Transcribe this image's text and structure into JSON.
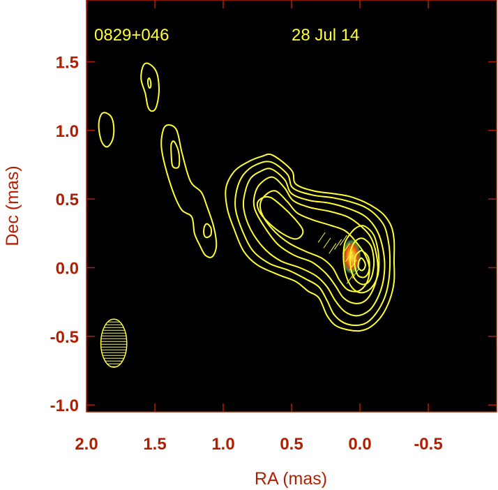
{
  "colors": {
    "axis": "#b41e00",
    "background": "#000000",
    "contour": "#ffff33",
    "page": "#ffffff"
  },
  "plot": {
    "source_label": "0829+046",
    "date_label": "28 Jul 14"
  },
  "chart_data": {
    "type": "contour",
    "xlabel": "RA (mas)",
    "ylabel": "Dec (mas)",
    "xlim": [
      2.0,
      -1.0
    ],
    "ylim": [
      -1.05,
      1.95
    ],
    "x_inverted": true,
    "x_ticks": [
      2.0,
      1.5,
      1.0,
      0.5,
      0.0,
      -0.5
    ],
    "x_tick_labels": [
      "2.0",
      "1.5",
      "1.0",
      "0.5",
      "0.0",
      "-0.5"
    ],
    "y_ticks": [
      1.5,
      1.0,
      0.5,
      0.0,
      -0.5,
      -1.0
    ],
    "y_tick_labels": [
      "1.5",
      "1.0",
      "0.5",
      "0.0",
      "-0.5",
      "-1.0"
    ],
    "annotations": [
      "0829+046",
      "28 Jul 14"
    ],
    "core_position": {
      "ra": 0.0,
      "dec": 0.04
    },
    "beam": {
      "ra": 1.8,
      "dec": -0.55,
      "major_axis": 0.35,
      "minor_axis": 0.19,
      "position_angle_deg": 0
    },
    "contours": [
      {
        "name": "knot-1.8",
        "points": [
          [
            1.87,
            1.13
          ],
          [
            1.82,
            1.1
          ],
          [
            1.8,
            1.02
          ],
          [
            1.81,
            0.93
          ],
          [
            1.85,
            0.88
          ],
          [
            1.89,
            0.92
          ],
          [
            1.91,
            1.02
          ],
          [
            1.9,
            1.1
          ]
        ]
      },
      {
        "name": "knot-1.5-outer",
        "points": [
          [
            1.56,
            1.49
          ],
          [
            1.51,
            1.46
          ],
          [
            1.48,
            1.4
          ],
          [
            1.47,
            1.28
          ],
          [
            1.49,
            1.17
          ],
          [
            1.52,
            1.14
          ],
          [
            1.55,
            1.17
          ],
          [
            1.57,
            1.27
          ],
          [
            1.6,
            1.37
          ],
          [
            1.59,
            1.46
          ]
        ]
      },
      {
        "name": "knot-1.5-inner",
        "points": [
          [
            1.54,
            1.38
          ],
          [
            1.53,
            1.35
          ],
          [
            1.53,
            1.32
          ],
          [
            1.54,
            1.31
          ],
          [
            1.55,
            1.34
          ],
          [
            1.55,
            1.37
          ]
        ]
      },
      {
        "name": "jet-arm-outer",
        "points": [
          [
            1.4,
            1.04
          ],
          [
            1.34,
            1.0
          ],
          [
            1.3,
            0.83
          ],
          [
            1.24,
            0.63
          ],
          [
            1.16,
            0.55
          ],
          [
            1.12,
            0.45
          ],
          [
            1.07,
            0.3
          ],
          [
            1.05,
            0.16
          ],
          [
            1.08,
            0.08
          ],
          [
            1.13,
            0.09
          ],
          [
            1.17,
            0.16
          ],
          [
            1.21,
            0.25
          ],
          [
            1.23,
            0.37
          ],
          [
            1.31,
            0.43
          ],
          [
            1.39,
            0.62
          ],
          [
            1.45,
            0.86
          ],
          [
            1.44,
            1.0
          ]
        ]
      },
      {
        "name": "jet-arm-knot-1.3",
        "points": [
          [
            1.36,
            0.92
          ],
          [
            1.33,
            0.86
          ],
          [
            1.32,
            0.78
          ],
          [
            1.33,
            0.73
          ],
          [
            1.37,
            0.74
          ],
          [
            1.38,
            0.83
          ],
          [
            1.38,
            0.9
          ]
        ]
      },
      {
        "name": "jet-arm-knot-1.1",
        "points": [
          [
            1.12,
            0.32
          ],
          [
            1.09,
            0.29
          ],
          [
            1.09,
            0.24
          ],
          [
            1.12,
            0.22
          ],
          [
            1.14,
            0.24
          ],
          [
            1.14,
            0.29
          ]
        ]
      },
      {
        "name": "main-contour-1",
        "points": [
          [
            0.64,
            0.82
          ],
          [
            0.5,
            0.71
          ],
          [
            0.47,
            0.61
          ],
          [
            0.34,
            0.56
          ],
          [
            0.2,
            0.54
          ],
          [
            0.08,
            0.52
          ],
          [
            -0.03,
            0.48
          ],
          [
            -0.12,
            0.43
          ],
          [
            -0.18,
            0.38
          ],
          [
            -0.23,
            0.3
          ],
          [
            -0.25,
            0.2
          ],
          [
            -0.25,
            0.05
          ],
          [
            -0.25,
            -0.1
          ],
          [
            -0.22,
            -0.23
          ],
          [
            -0.16,
            -0.35
          ],
          [
            -0.08,
            -0.43
          ],
          [
            0.0,
            -0.46
          ],
          [
            0.1,
            -0.45
          ],
          [
            0.18,
            -0.42
          ],
          [
            0.24,
            -0.35
          ],
          [
            0.3,
            -0.22
          ],
          [
            0.38,
            -0.17
          ],
          [
            0.47,
            -0.1
          ],
          [
            0.6,
            -0.05
          ],
          [
            0.75,
            0.02
          ],
          [
            0.85,
            0.12
          ],
          [
            0.92,
            0.28
          ],
          [
            0.97,
            0.43
          ],
          [
            0.98,
            0.58
          ],
          [
            0.92,
            0.7
          ],
          [
            0.82,
            0.77
          ],
          [
            0.72,
            0.81
          ]
        ]
      },
      {
        "name": "main-contour-2",
        "points": [
          [
            0.65,
            0.77
          ],
          [
            0.53,
            0.68
          ],
          [
            0.49,
            0.58
          ],
          [
            0.35,
            0.53
          ],
          [
            0.2,
            0.51
          ],
          [
            0.07,
            0.48
          ],
          [
            -0.04,
            0.44
          ],
          [
            -0.12,
            0.38
          ],
          [
            -0.18,
            0.3
          ],
          [
            -0.21,
            0.18
          ],
          [
            -0.22,
            0.05
          ],
          [
            -0.21,
            -0.1
          ],
          [
            -0.18,
            -0.22
          ],
          [
            -0.12,
            -0.33
          ],
          [
            -0.05,
            -0.4
          ],
          [
            0.03,
            -0.42
          ],
          [
            0.12,
            -0.4
          ],
          [
            0.19,
            -0.34
          ],
          [
            0.24,
            -0.24
          ],
          [
            0.3,
            -0.14
          ],
          [
            0.4,
            -0.08
          ],
          [
            0.52,
            -0.02
          ],
          [
            0.66,
            0.03
          ],
          [
            0.78,
            0.12
          ],
          [
            0.86,
            0.27
          ],
          [
            0.91,
            0.43
          ],
          [
            0.9,
            0.57
          ],
          [
            0.85,
            0.68
          ],
          [
            0.76,
            0.75
          ]
        ]
      },
      {
        "name": "main-contour-3",
        "points": [
          [
            0.65,
            0.72
          ],
          [
            0.55,
            0.64
          ],
          [
            0.5,
            0.54
          ],
          [
            0.37,
            0.49
          ],
          [
            0.22,
            0.47
          ],
          [
            0.08,
            0.43
          ],
          [
            -0.03,
            0.38
          ],
          [
            -0.1,
            0.31
          ],
          [
            -0.15,
            0.21
          ],
          [
            -0.18,
            0.05
          ],
          [
            -0.17,
            -0.1
          ],
          [
            -0.13,
            -0.22
          ],
          [
            -0.07,
            -0.31
          ],
          [
            0.02,
            -0.35
          ],
          [
            0.11,
            -0.32
          ],
          [
            0.18,
            -0.24
          ],
          [
            0.24,
            -0.14
          ],
          [
            0.32,
            -0.06
          ],
          [
            0.44,
            0.0
          ],
          [
            0.58,
            0.05
          ],
          [
            0.7,
            0.14
          ],
          [
            0.8,
            0.28
          ],
          [
            0.85,
            0.43
          ],
          [
            0.84,
            0.55
          ],
          [
            0.8,
            0.65
          ],
          [
            0.73,
            0.7
          ]
        ]
      },
      {
        "name": "main-contour-4",
        "points": [
          [
            0.64,
            0.66
          ],
          [
            0.55,
            0.58
          ],
          [
            0.49,
            0.49
          ],
          [
            0.37,
            0.44
          ],
          [
            0.22,
            0.41
          ],
          [
            0.09,
            0.37
          ],
          [
            -0.01,
            0.3
          ],
          [
            -0.08,
            0.22
          ],
          [
            -0.12,
            0.1
          ],
          [
            -0.13,
            -0.03
          ],
          [
            -0.1,
            -0.15
          ],
          [
            -0.04,
            -0.24
          ],
          [
            0.04,
            -0.26
          ],
          [
            0.12,
            -0.22
          ],
          [
            0.18,
            -0.13
          ],
          [
            0.25,
            -0.04
          ],
          [
            0.35,
            0.04
          ],
          [
            0.48,
            0.09
          ],
          [
            0.6,
            0.17
          ],
          [
            0.7,
            0.3
          ],
          [
            0.77,
            0.43
          ],
          [
            0.77,
            0.53
          ],
          [
            0.73,
            0.61
          ]
        ]
      },
      {
        "name": "main-contour-5",
        "points": [
          [
            0.62,
            0.56
          ],
          [
            0.53,
            0.48
          ],
          [
            0.46,
            0.4
          ],
          [
            0.35,
            0.35
          ],
          [
            0.22,
            0.31
          ],
          [
            0.11,
            0.27
          ],
          [
            0.03,
            0.19
          ],
          [
            -0.04,
            0.09
          ],
          [
            -0.07,
            -0.01
          ],
          [
            -0.05,
            -0.11
          ],
          [
            0.01,
            -0.17
          ],
          [
            0.09,
            -0.16
          ],
          [
            0.15,
            -0.09
          ],
          [
            0.2,
            0.0
          ],
          [
            0.28,
            0.07
          ],
          [
            0.4,
            0.12
          ],
          [
            0.52,
            0.18
          ],
          [
            0.62,
            0.26
          ],
          [
            0.7,
            0.36
          ],
          [
            0.73,
            0.45
          ],
          [
            0.7,
            0.52
          ]
        ]
      },
      {
        "name": "jet-knot-0.7",
        "points": [
          [
            0.65,
            0.51
          ],
          [
            0.56,
            0.44
          ],
          [
            0.48,
            0.36
          ],
          [
            0.42,
            0.28
          ],
          [
            0.43,
            0.23
          ],
          [
            0.48,
            0.21
          ],
          [
            0.57,
            0.25
          ],
          [
            0.66,
            0.32
          ],
          [
            0.73,
            0.4
          ],
          [
            0.75,
            0.47
          ],
          [
            0.71,
            0.51
          ]
        ]
      },
      {
        "name": "core-contour-6",
        "points": [
          [
            -0.04,
            0.3
          ],
          [
            -0.1,
            0.24
          ],
          [
            -0.13,
            0.14
          ],
          [
            -0.14,
            0.04
          ],
          [
            -0.13,
            -0.06
          ],
          [
            -0.09,
            -0.14
          ],
          [
            -0.03,
            -0.18
          ],
          [
            0.03,
            -0.17
          ],
          [
            0.08,
            -0.11
          ],
          [
            0.11,
            -0.02
          ],
          [
            0.12,
            0.08
          ],
          [
            0.11,
            0.18
          ],
          [
            0.06,
            0.26
          ],
          [
            0.01,
            0.3
          ]
        ]
      },
      {
        "name": "core-contour-7",
        "points": [
          [
            -0.03,
            0.21
          ],
          [
            -0.08,
            0.16
          ],
          [
            -0.1,
            0.08
          ],
          [
            -0.1,
            0.0
          ],
          [
            -0.08,
            -0.08
          ],
          [
            -0.04,
            -0.12
          ],
          [
            0.01,
            -0.11
          ],
          [
            0.05,
            -0.06
          ],
          [
            0.07,
            0.02
          ],
          [
            0.07,
            0.1
          ],
          [
            0.05,
            0.17
          ],
          [
            0.01,
            0.21
          ]
        ]
      },
      {
        "name": "core-contour-8",
        "points": [
          [
            -0.02,
            0.12
          ],
          [
            -0.06,
            0.08
          ],
          [
            -0.07,
            0.02
          ],
          [
            -0.06,
            -0.04
          ],
          [
            -0.03,
            -0.07
          ],
          [
            0.01,
            -0.06
          ],
          [
            0.03,
            -0.02
          ],
          [
            0.04,
            0.04
          ],
          [
            0.03,
            0.09
          ],
          [
            0.0,
            0.12
          ]
        ]
      },
      {
        "name": "core-contour-9",
        "points": [
          [
            -0.01,
            0.07
          ],
          [
            -0.03,
            0.05
          ],
          [
            -0.04,
            0.02
          ],
          [
            -0.03,
            -0.01
          ],
          [
            -0.01,
            -0.02
          ],
          [
            0.01,
            0.0
          ],
          [
            0.01,
            0.04
          ],
          [
            0.0,
            0.06
          ]
        ]
      }
    ],
    "polarization_ticks": [
      {
        "ra": 0.28,
        "dec": 0.22,
        "angle_deg": 35,
        "length": 0.09
      },
      {
        "ra": 0.24,
        "dec": 0.18,
        "angle_deg": 35,
        "length": 0.09
      },
      {
        "ra": 0.2,
        "dec": 0.14,
        "angle_deg": 35,
        "length": 0.09
      },
      {
        "ra": 0.16,
        "dec": 0.17,
        "angle_deg": 35,
        "length": 0.09
      },
      {
        "ra": 0.12,
        "dec": 0.2,
        "angle_deg": 35,
        "length": 0.09
      },
      {
        "ra": 0.1,
        "dec": 0.14,
        "angle_deg": 35,
        "length": 0.09
      },
      {
        "ra": 0.08,
        "dec": 0.08,
        "angle_deg": 35,
        "length": 0.09
      },
      {
        "ra": 0.05,
        "dec": 0.02,
        "angle_deg": 35,
        "length": 0.09
      },
      {
        "ra": 0.03,
        "dec": -0.04,
        "angle_deg": 35,
        "length": 0.09
      },
      {
        "ra": 0.07,
        "dec": -0.08,
        "angle_deg": 35,
        "length": 0.09
      }
    ]
  }
}
